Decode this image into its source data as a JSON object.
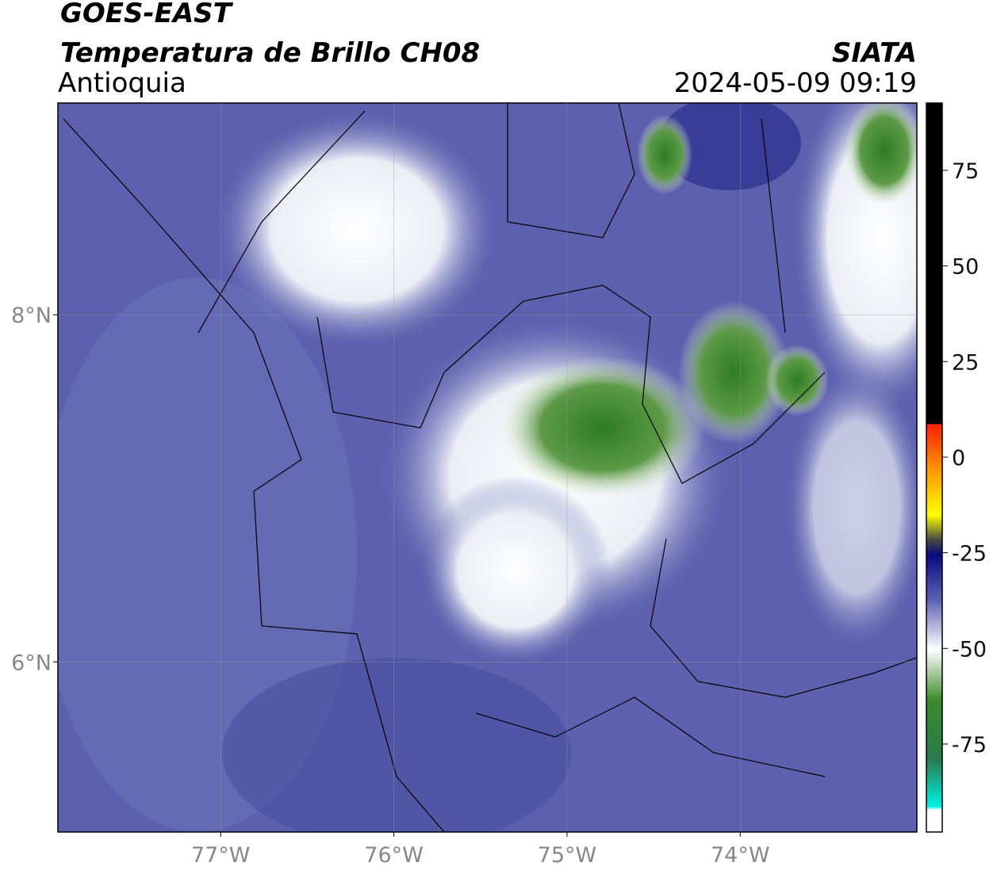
{
  "header": {
    "title": "GOES-EAST",
    "subtitle": "Temperatura de Brillo CH08",
    "region": "Antioquia",
    "source": "SIATA",
    "datetime": "2024-05-09 09:19"
  },
  "map": {
    "xlim": [
      -77.94,
      -72.98
    ],
    "ylim": [
      5.02,
      9.22
    ],
    "xticks": [
      {
        "value": -77,
        "label": "77°W"
      },
      {
        "value": -76,
        "label": "76°W"
      },
      {
        "value": -75,
        "label": "75°W"
      },
      {
        "value": -74,
        "label": "74°W"
      }
    ],
    "yticks": [
      {
        "value": 8,
        "label": "8°N"
      },
      {
        "value": 6,
        "label": "6°N"
      }
    ],
    "grid": true
  },
  "colorbar": {
    "lim": [
      -98,
      92.6
    ],
    "ticks": [
      75,
      50,
      25,
      0,
      -25,
      -50,
      -75
    ]
  }
}
